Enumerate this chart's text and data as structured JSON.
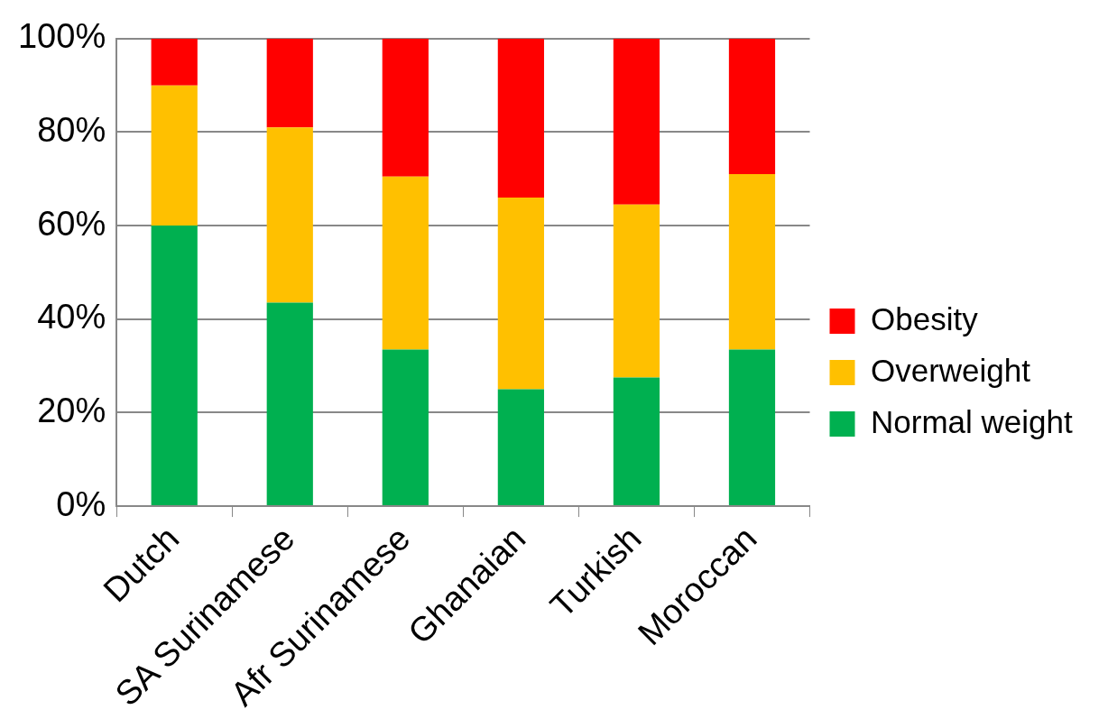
{
  "chart_data": {
    "type": "bar",
    "stacked": true,
    "categories": [
      "Dutch",
      "SA Surinamese",
      "Afr Surinamese",
      "Ghanaian",
      "Turkish",
      "Moroccan"
    ],
    "series": [
      {
        "name": "Normal weight",
        "color": "#00b050",
        "values": [
          60,
          43.5,
          33.5,
          25,
          27.5,
          33.5
        ]
      },
      {
        "name": "Overweight",
        "color": "#ffc000",
        "values": [
          30,
          37.5,
          37,
          41,
          37,
          37.5
        ]
      },
      {
        "name": "Obesity",
        "color": "#ff0000",
        "values": [
          10,
          19,
          29.5,
          34,
          35.5,
          29
        ]
      }
    ],
    "ylim": [
      0,
      100
    ],
    "yticks": [
      {
        "value": 0,
        "label": "0%"
      },
      {
        "value": 20,
        "label": "20%"
      },
      {
        "value": 40,
        "label": "40%"
      },
      {
        "value": 60,
        "label": "60%"
      },
      {
        "value": 80,
        "label": "80%"
      },
      {
        "value": 100,
        "label": "100%"
      }
    ],
    "grid": "y",
    "legend": "right"
  }
}
